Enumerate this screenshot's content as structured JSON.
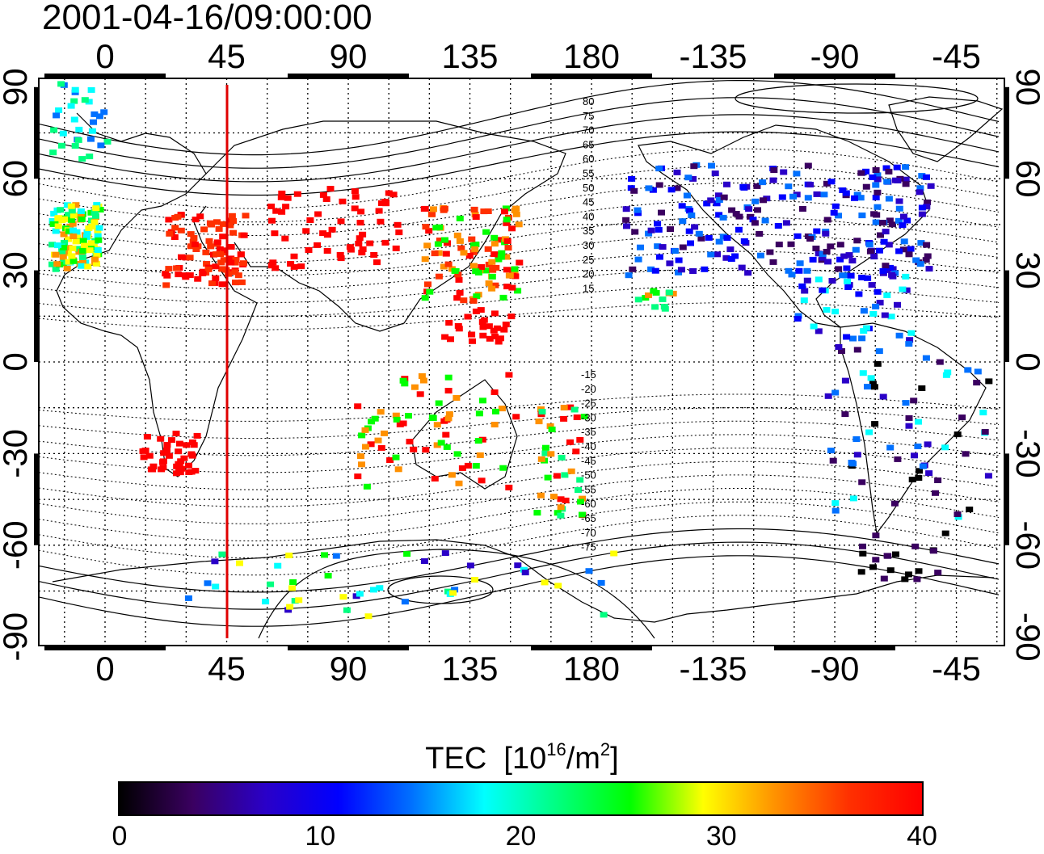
{
  "title": "2001-04-16/09:00:00",
  "map": {
    "top_lon_ticks": [
      "0",
      "45",
      "90",
      "135",
      "180",
      "-135",
      "-90",
      "-45"
    ],
    "bottom_lon_ticks": [
      "0",
      "45",
      "90",
      "135",
      "180",
      "-135",
      "-90",
      "-45"
    ],
    "left_lat_ticks": [
      "90",
      "60",
      "30",
      "0",
      "-30",
      "-60",
      "-90"
    ],
    "right_lat_ticks": [
      "90",
      "60",
      "30",
      "0",
      "-30",
      "-60",
      "-90"
    ],
    "contour_labels_north": [
      "80",
      "75",
      "70",
      "65",
      "60",
      "55",
      "50",
      "45",
      "40",
      "35",
      "30",
      "25",
      "20",
      "15"
    ],
    "contour_labels_south": [
      "-15",
      "-20",
      "-25",
      "-30",
      "-35",
      "-40",
      "-45",
      "-50",
      "-55",
      "-60",
      "-65",
      "-70",
      "-75"
    ],
    "meridian_marker_color": "#e00000",
    "grid": "dotted"
  },
  "colorbar": {
    "title": "TEC",
    "unit_prefix": "[10",
    "unit_exp": "16",
    "unit_mid": "/m",
    "unit_exp2": "2",
    "unit_suffix": "]",
    "ticks": [
      "0",
      "10",
      "20",
      "30",
      "40"
    ],
    "range": [
      0,
      40
    ],
    "colors": [
      "#000000",
      "#3a0060",
      "#2a00c8",
      "#0000ff",
      "#0070ff",
      "#00ffff",
      "#00ff80",
      "#00ff00",
      "#ffff00",
      "#ff9000",
      "#ff3000",
      "#ff0000"
    ]
  }
}
